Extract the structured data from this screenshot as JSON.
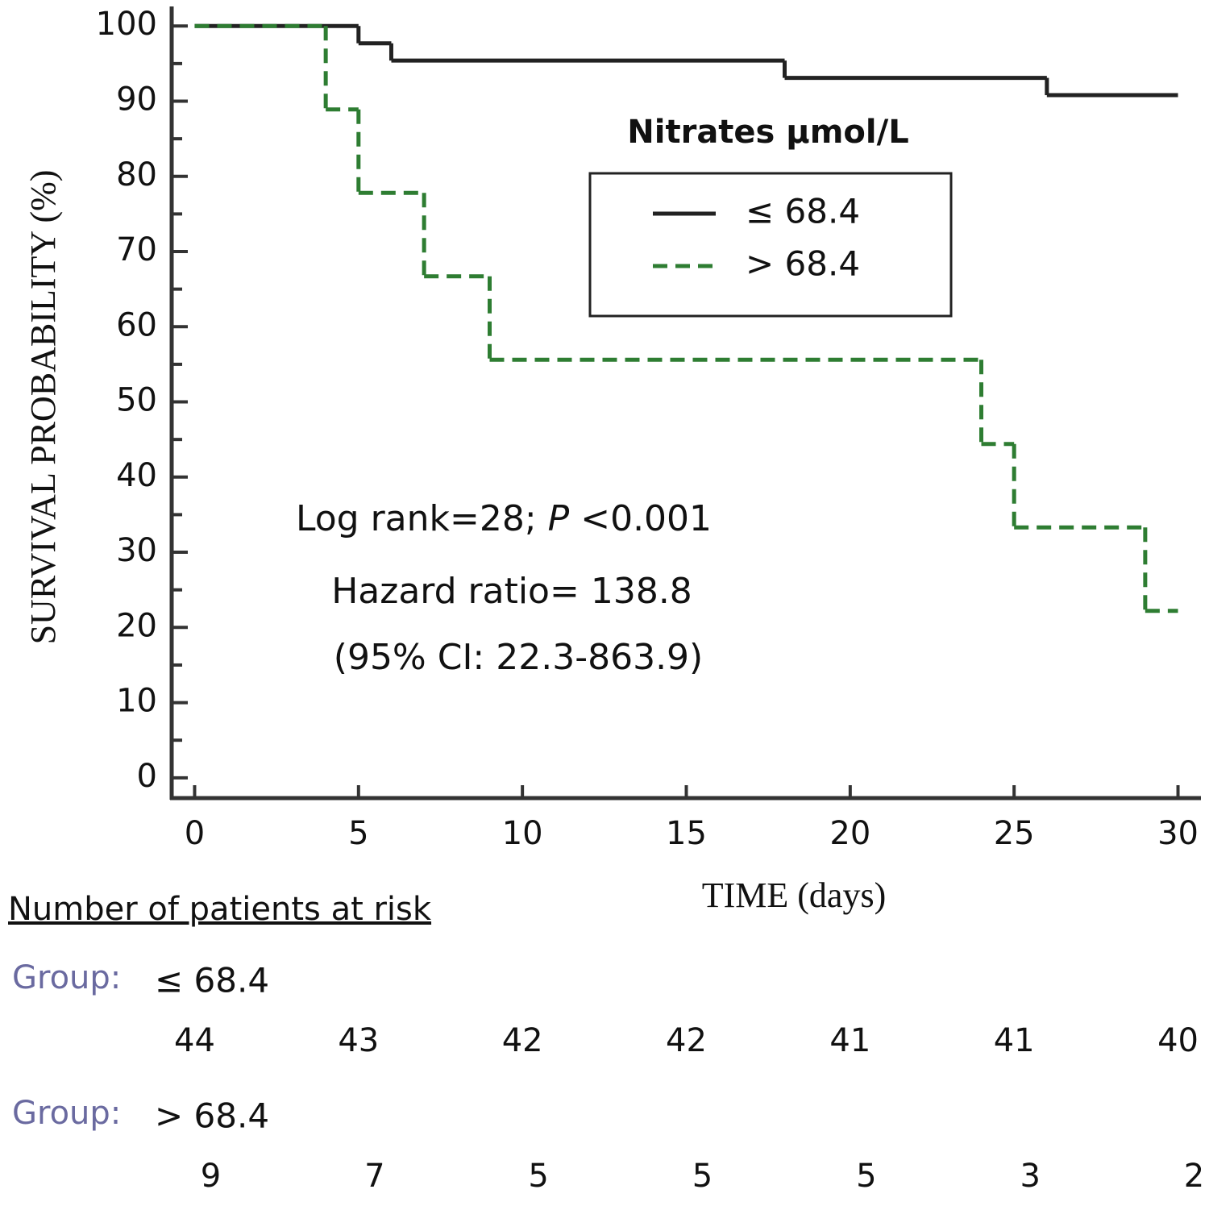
{
  "chart_data": {
    "type": "step",
    "y_label": "SURVIVAL PROBABILITY (%)",
    "x_label": "TIME (days)",
    "xlim": [
      -0.7,
      30.7
    ],
    "ylim": [
      -2.7,
      102.6
    ],
    "xticks": [
      0,
      5,
      10,
      15,
      20,
      25,
      30
    ],
    "yticks": [
      0,
      10,
      20,
      30,
      40,
      50,
      60,
      70,
      80,
      90,
      100
    ],
    "yminorticks": [
      5,
      15,
      25,
      35,
      45,
      55,
      65,
      75,
      85,
      95
    ],
    "legend_title": "Nitrates µmol/L",
    "series": [
      {
        "name": "≤ 68.4",
        "color": "#222222",
        "dashed": false,
        "x": [
          0,
          5,
          6,
          18,
          26,
          30
        ],
        "values": [
          100,
          97.7,
          95.4,
          93.1,
          90.8,
          90.8
        ]
      },
      {
        "name": "> 68.4",
        "color": "#2e7d32",
        "dashed": true,
        "x": [
          0,
          4,
          5,
          7,
          9,
          24,
          25,
          29,
          30
        ],
        "values": [
          100,
          88.9,
          77.8,
          66.7,
          55.6,
          44.4,
          33.3,
          22.2,
          22.2
        ]
      }
    ],
    "annotation": {
      "line1": [
        "Log rank=28; ",
        "P",
        " <0.001"
      ],
      "line2": "Hazard ratio= 138.8",
      "line3": "(95% CI: 22.3-863.9)"
    },
    "risk_table": {
      "title": "Number of patients at risk",
      "group_prefix": "Group:",
      "groups": [
        {
          "label": "≤ 68.4",
          "counts": [
            44,
            43,
            42,
            42,
            41,
            41,
            40
          ]
        },
        {
          "label": "> 68.4",
          "counts": [
            9,
            7,
            5,
            5,
            5,
            3,
            2
          ]
        }
      ]
    }
  }
}
